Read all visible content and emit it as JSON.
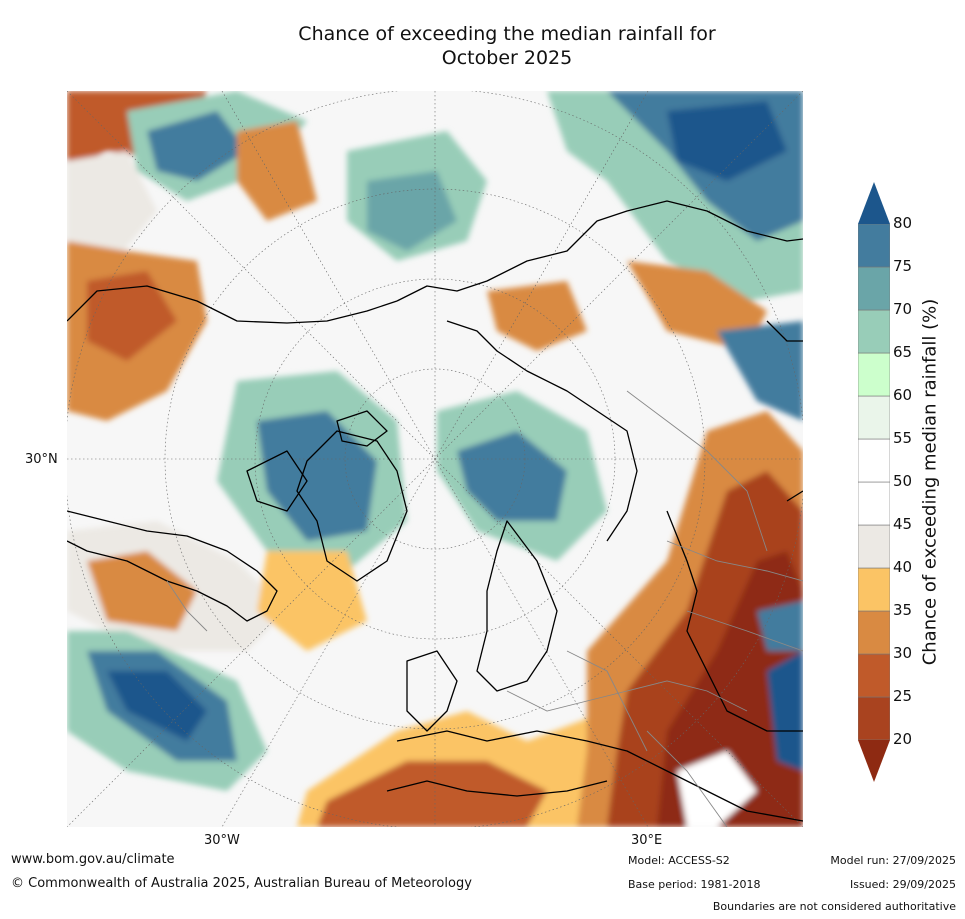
{
  "title_line1": "Chance of exceeding the median rainfall for",
  "title_line2": "October 2025",
  "axis_labels": {
    "lat_30n": "30°N",
    "lon_30w": "30°W",
    "lon_30e": "30°E"
  },
  "colorbar": {
    "title": "Chance of exceeding median rainfall (%)",
    "ticks": [
      "20",
      "25",
      "30",
      "35",
      "40",
      "45",
      "50",
      "55",
      "60",
      "65",
      "70",
      "75",
      "80"
    ],
    "colors": [
      "#8e2a12",
      "#a9431f",
      "#c05a2a",
      "#d98a42",
      "#fbc465",
      "#ece9e4",
      "#ffffff",
      "#ffffff",
      "#eaf5ea",
      "#ccffcc",
      "#98cdb8",
      "#6aa5a8",
      "#437c9e",
      "#1c568c"
    ]
  },
  "footer": {
    "website": "www.bom.gov.au/climate",
    "copyright": "© Commonwealth of Australia 2025, Australian Bureau of Meteorology",
    "model": "Model: ACCESS-S2",
    "base_period": "Base period: 1981-2018",
    "model_run": "Model run: 27/09/2025",
    "issued": "Issued: 29/09/2025",
    "disclaimer": "Boundaries are not considered authoritative"
  }
}
